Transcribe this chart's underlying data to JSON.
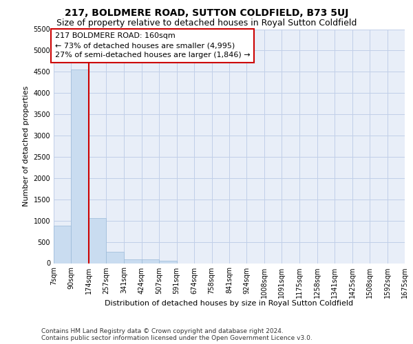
{
  "title": "217, BOLDMERE ROAD, SUTTON COLDFIELD, B73 5UJ",
  "subtitle": "Size of property relative to detached houses in Royal Sutton Coldfield",
  "xlabel": "Distribution of detached houses by size in Royal Sutton Coldfield",
  "ylabel": "Number of detached properties",
  "footer_line1": "Contains HM Land Registry data © Crown copyright and database right 2024.",
  "footer_line2": "Contains public sector information licensed under the Open Government Licence v3.0.",
  "annotation_title": "217 BOLDMERE ROAD: 160sqm",
  "annotation_line1": "← 73% of detached houses are smaller (4,995)",
  "annotation_line2": "27% of semi-detached houses are larger (1,846) →",
  "bar_edges": [
    7,
    90,
    174,
    257,
    341,
    424,
    507,
    591,
    674,
    758,
    841,
    924,
    1008,
    1091,
    1175,
    1258,
    1341,
    1425,
    1508,
    1592,
    1675
  ],
  "bar_heights": [
    880,
    4550,
    1060,
    275,
    95,
    90,
    50,
    0,
    0,
    0,
    0,
    0,
    0,
    0,
    0,
    0,
    0,
    0,
    0,
    0
  ],
  "bar_color": "#c9dcf0",
  "bar_edgecolor": "#9bbad8",
  "vline_x": 174,
  "vline_color": "#cc0000",
  "ylim": [
    0,
    5500
  ],
  "yticks": [
    0,
    500,
    1000,
    1500,
    2000,
    2500,
    3000,
    3500,
    4000,
    4500,
    5000,
    5500
  ],
  "grid_color": "#c0cfe8",
  "bg_color": "#e8eef8",
  "title_fontsize": 10,
  "subtitle_fontsize": 9,
  "axis_label_fontsize": 8,
  "tick_fontsize": 7,
  "footer_fontsize": 6.5,
  "annotation_fontsize": 8
}
